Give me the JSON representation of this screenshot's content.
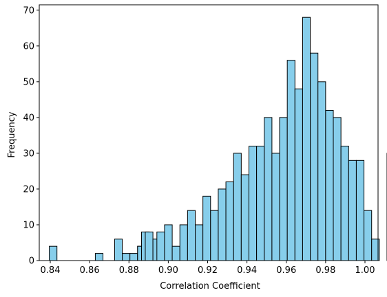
{
  "chart_data": {
    "type": "bar",
    "title": "",
    "xlabel": "Correlation Coefficient",
    "ylabel": "Frequency",
    "xlim": [
      0.8335,
      1.0079
    ],
    "ylim": [
      0,
      71.5
    ],
    "bin_width": 0.0039,
    "bar_color": "#87ceeb",
    "edge_color": "#000000",
    "grid": false,
    "xticks": [
      0.84,
      0.86,
      0.88,
      0.9,
      0.92,
      0.94,
      0.96,
      0.98,
      1.0
    ],
    "xtick_labels": [
      "0.84",
      "0.86",
      "0.88",
      "0.90",
      "0.92",
      "0.94",
      "0.96",
      "0.98",
      "1.00"
    ],
    "yticks": [
      0,
      10,
      20,
      30,
      40,
      50,
      60,
      70
    ],
    "ytick_labels": [
      "0",
      "10",
      "20",
      "30",
      "40",
      "50",
      "60",
      "70"
    ],
    "bins": [
      {
        "x0": 0.8414,
        "value": 4
      },
      {
        "x0": 0.8648,
        "value": 2
      },
      {
        "x0": 0.8746,
        "value": 6
      },
      {
        "x0": 0.8785,
        "value": 2
      },
      {
        "x0": 0.8824,
        "value": 2
      },
      {
        "x0": 0.8863,
        "value": 4
      },
      {
        "x0": 0.8863,
        "value": 4
      },
      {
        "x0": 0.8883,
        "value": 8
      },
      {
        "x0": 0.8902,
        "value": 8
      },
      {
        "x0": 0.8941,
        "value": 6
      },
      {
        "x0": 0.8961,
        "value": 8
      },
      {
        "x0": 0.9,
        "value": 10
      },
      {
        "x0": 0.9039,
        "value": 4
      },
      {
        "x0": 0.9078,
        "value": 10
      },
      {
        "x0": 0.9117,
        "value": 14
      },
      {
        "x0": 0.9156,
        "value": 10
      },
      {
        "x0": 0.9195,
        "value": 18
      },
      {
        "x0": 0.9234,
        "value": 14
      },
      {
        "x0": 0.9273,
        "value": 20
      },
      {
        "x0": 0.9312,
        "value": 22
      },
      {
        "x0": 0.9351,
        "value": 30
      },
      {
        "x0": 0.939,
        "value": 24
      },
      {
        "x0": 0.9429,
        "value": 32
      },
      {
        "x0": 0.9468,
        "value": 32
      },
      {
        "x0": 0.9507,
        "value": 40
      },
      {
        "x0": 0.9546,
        "value": 30
      },
      {
        "x0": 0.9585,
        "value": 40
      },
      {
        "x0": 0.9624,
        "value": 56
      },
      {
        "x0": 0.9663,
        "value": 48
      },
      {
        "x0": 0.9702,
        "value": 68
      },
      {
        "x0": 0.9741,
        "value": 58
      },
      {
        "x0": 0.978,
        "value": 50
      },
      {
        "x0": 0.9819,
        "value": 42
      },
      {
        "x0": 0.9858,
        "value": 40
      },
      {
        "x0": 0.9897,
        "value": 32
      },
      {
        "x0": 0.9936,
        "value": 28
      },
      {
        "x0": 0.9975,
        "value": 28
      },
      {
        "x0": 1.0014,
        "value": 14
      },
      {
        "x0": 1.0053,
        "value": 6
      },
      {
        "x0": 1.0131,
        "value": 30
      }
    ]
  }
}
